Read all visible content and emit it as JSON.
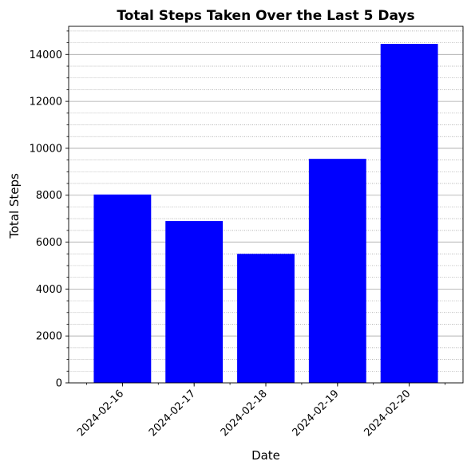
{
  "chart_data": {
    "type": "bar",
    "title": "Total Steps Taken Over the Last 5 Days",
    "xlabel": "Date",
    "ylabel": "Total Steps",
    "categories": [
      "2024-02-16",
      "2024-02-17",
      "2024-02-18",
      "2024-02-19",
      "2024-02-20"
    ],
    "values": [
      8030,
      6900,
      5500,
      9550,
      14450
    ],
    "ylim": [
      0,
      15200
    ],
    "y_ticks": [
      "0",
      "2000",
      "4000",
      "6000",
      "8000",
      "10000",
      "12000",
      "14000"
    ],
    "y_tick_values": [
      0,
      2000,
      4000,
      6000,
      8000,
      10000,
      12000,
      14000
    ],
    "y_minor_step": 500,
    "x_tick_rotation": "45 degrees",
    "grid": "major solid and minor dotted, y-axis only",
    "legend": "none",
    "bar_color": "#0000ff"
  }
}
